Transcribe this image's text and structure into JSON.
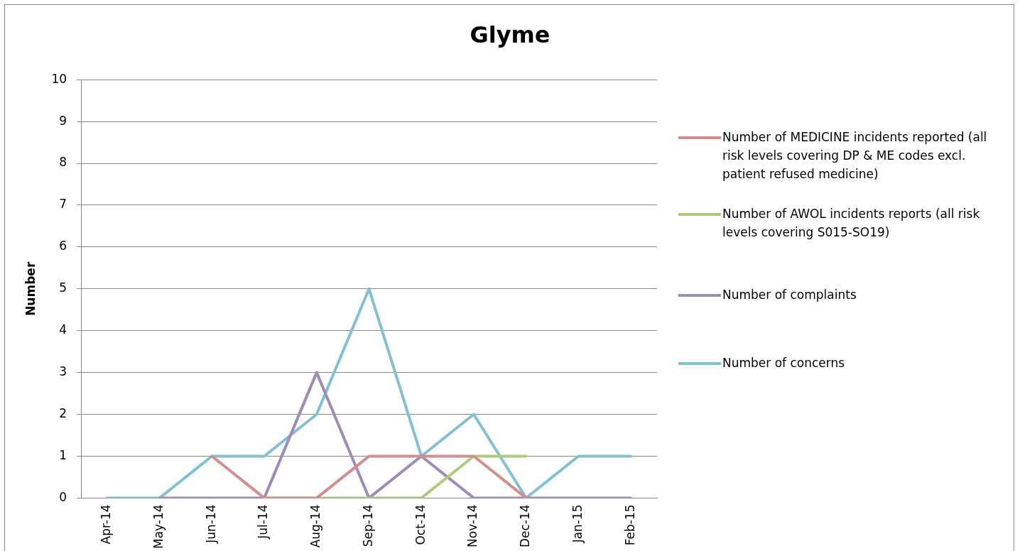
{
  "chart_data": {
    "type": "line",
    "title": "Glyme",
    "ylabel": "Number",
    "categories": [
      "Apr-14",
      "May-14",
      "Jun-14",
      "Jul-14",
      "Aug-14",
      "Sep-14",
      "Oct-14",
      "Nov-14",
      "Dec-14",
      "Jan-15",
      "Feb-15"
    ],
    "series": [
      {
        "name": "Number of MEDICINE incidents reported (all risk levels covering DP & ME codes excl. patient refused medicine)",
        "color": "#d38d8a",
        "values": [
          null,
          null,
          1,
          0,
          0,
          1,
          1,
          1,
          0,
          null,
          null
        ]
      },
      {
        "name": "Number of AWOL incidents reports (all risk levels covering S015-SO19)",
        "color": "#aecb7c",
        "values": [
          null,
          null,
          null,
          0,
          0,
          0,
          0,
          1,
          1,
          null,
          null
        ]
      },
      {
        "name": "Number of complaints",
        "color": "#9e8cb8",
        "values": [
          null,
          0,
          0,
          0,
          3,
          0,
          1,
          0,
          0,
          0,
          0
        ]
      },
      {
        "name": "Number of concerns",
        "color": "#84c0d3",
        "values": [
          0,
          0,
          1,
          1,
          2,
          5,
          1,
          2,
          0,
          1,
          1
        ]
      }
    ],
    "ylim": [
      0,
      10
    ],
    "yticks": [
      0,
      1,
      2,
      3,
      4,
      5,
      6,
      7,
      8,
      9,
      10
    ],
    "grid": "y",
    "legend": "right",
    "marker": "none",
    "line_style": "solid"
  }
}
